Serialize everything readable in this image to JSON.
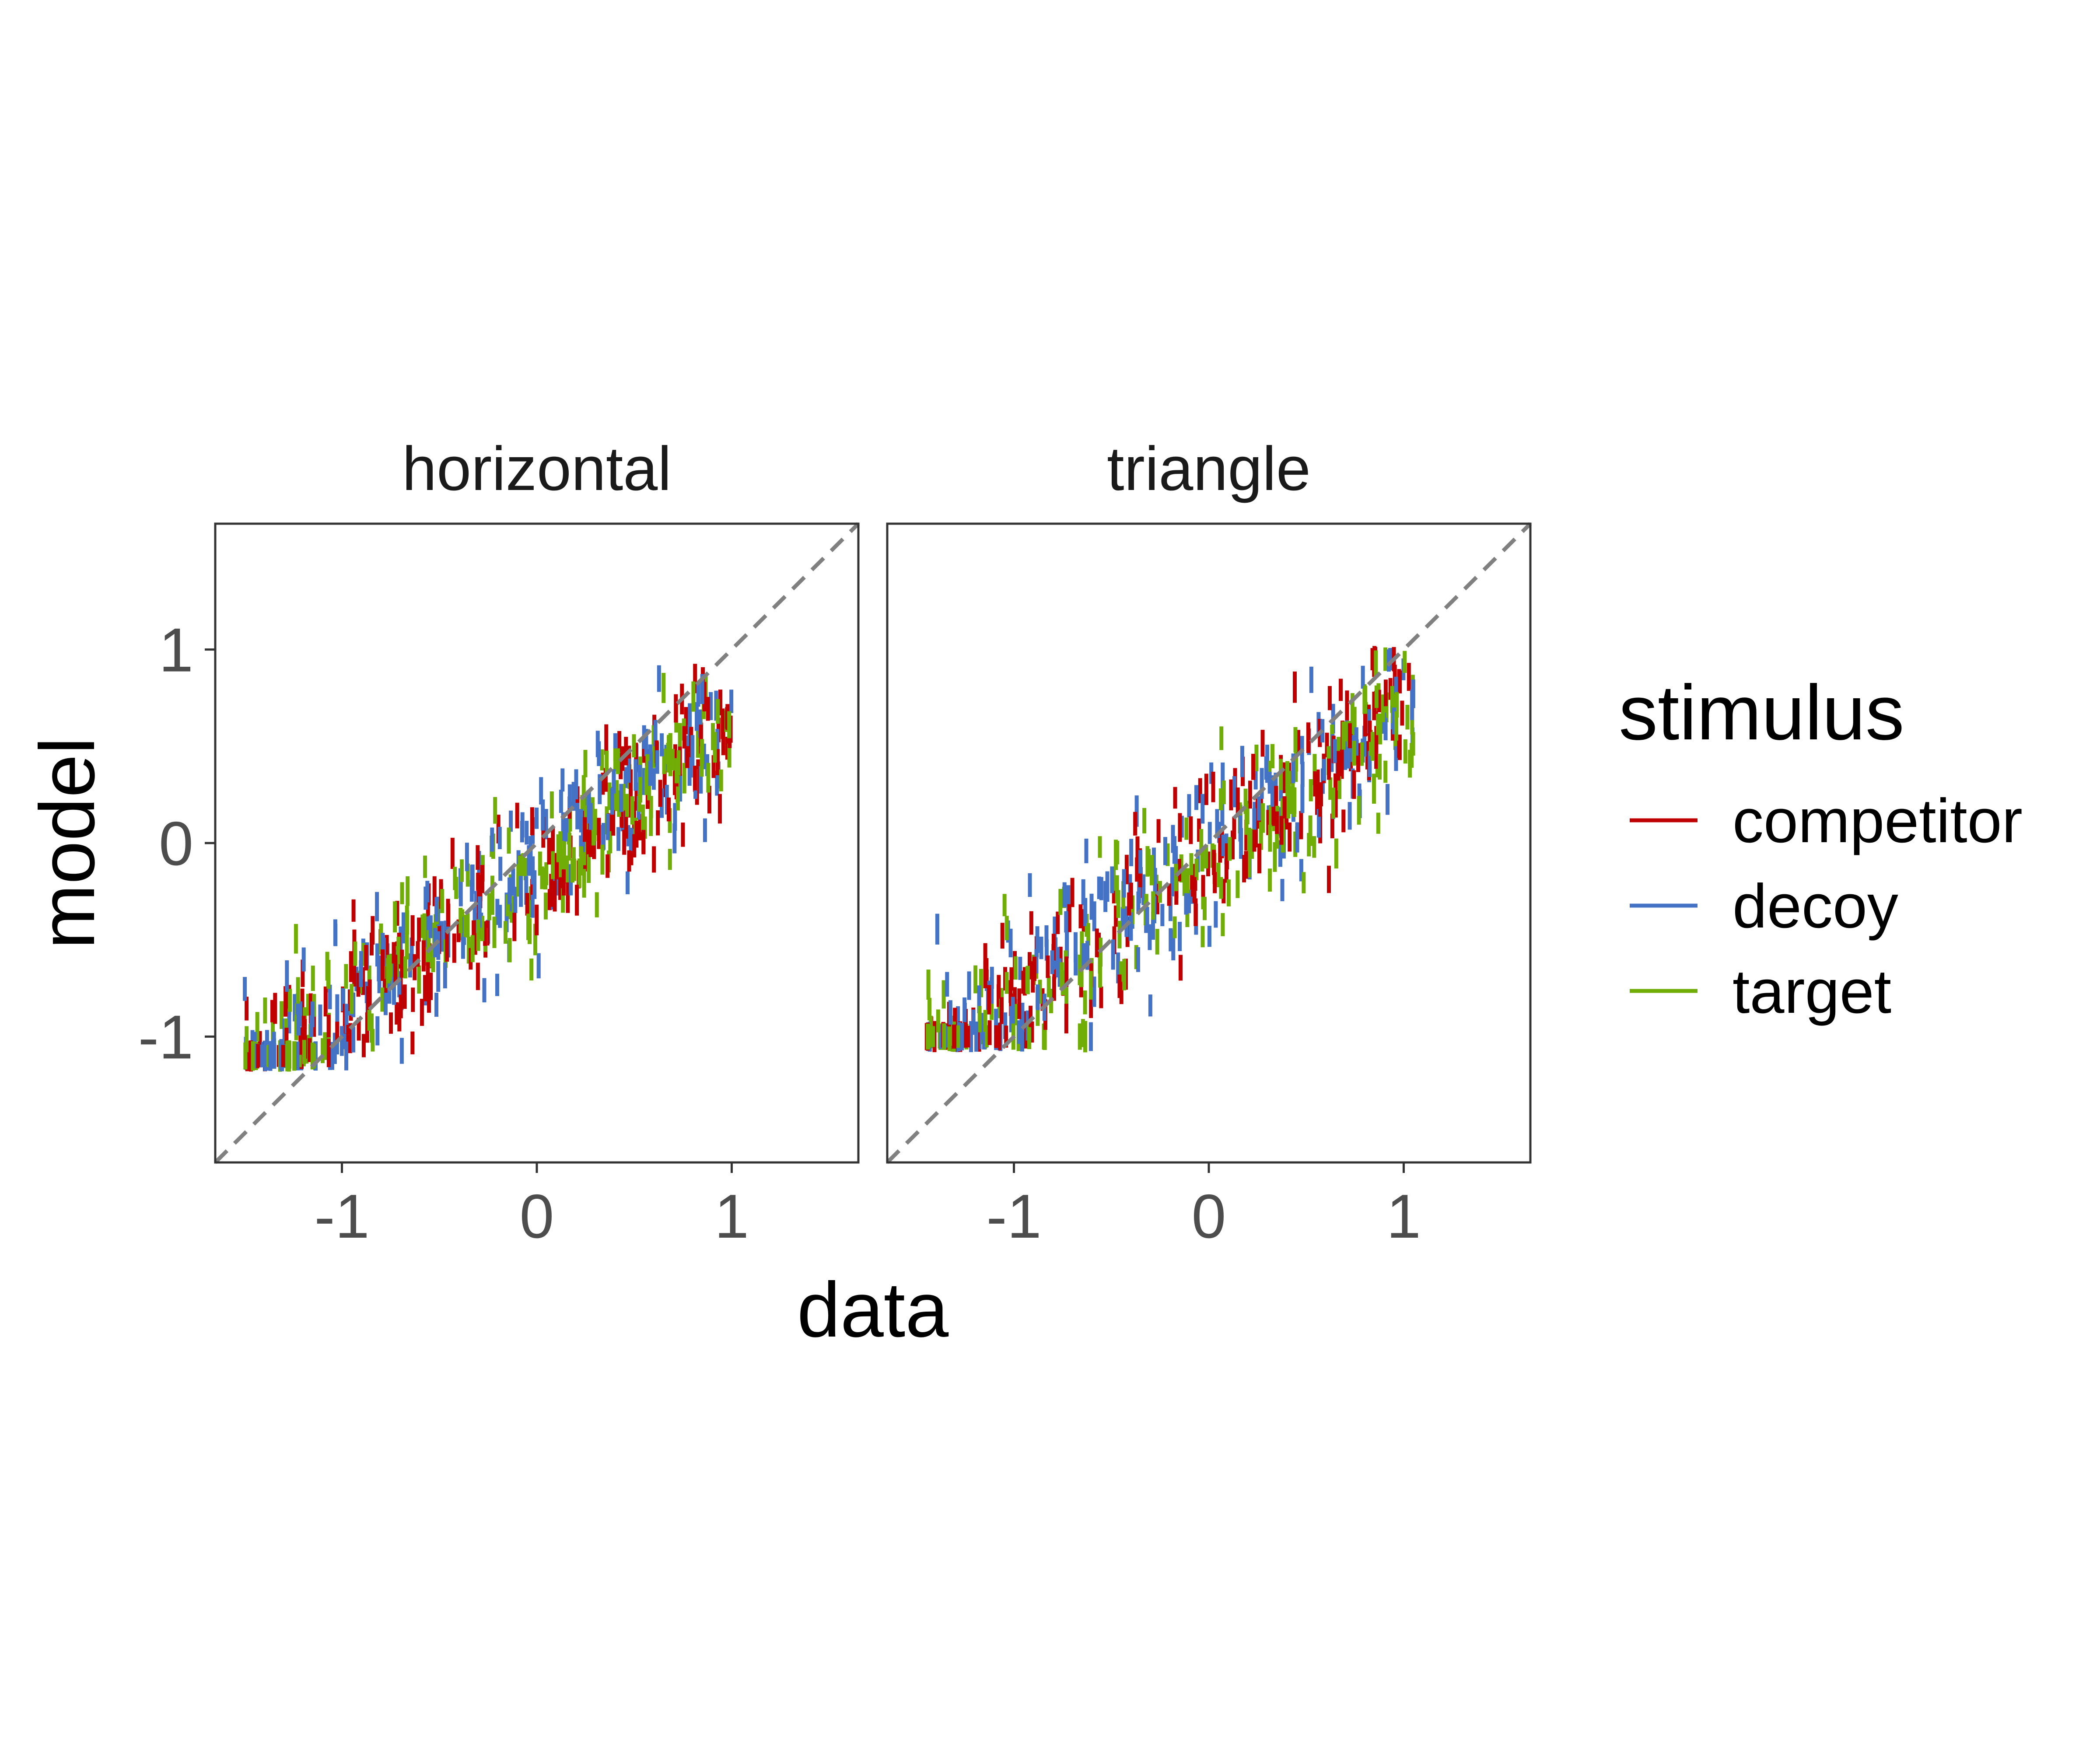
{
  "chart_data": {
    "type": "scatter",
    "xlabel": "data",
    "ylabel": "model",
    "xlim": [
      -1.65,
      1.65
    ],
    "ylim": [
      -1.65,
      1.65
    ],
    "x_ticks": [
      "-1",
      "0",
      "1"
    ],
    "y_ticks": [
      "-1",
      "0",
      "1"
    ],
    "reference_line": "y = x (dashed)",
    "marker": "short vertical segment",
    "legend": {
      "title": "stimulus",
      "placement": "right",
      "entries": [
        {
          "label": "competitor",
          "color": "#C00000"
        },
        {
          "label": "decoy",
          "color": "#4472C4"
        },
        {
          "label": "target",
          "color": "#70AD07"
        }
      ]
    },
    "panels": [
      {
        "name": "horizontal",
        "x_range": [
          -1.5,
          1.0
        ],
        "y_range": [
          -1.1,
          0.85
        ],
        "trend": {
          "slope": 0.75,
          "intercept": -0.12,
          "spread": 0.18
        },
        "points_per_series": 230
      },
      {
        "name": "triangle",
        "x_range": [
          -1.45,
          1.05
        ],
        "y_range": [
          -1.0,
          0.95
        ],
        "trend": {
          "slope": 0.75,
          "intercept": -0.05,
          "spread": 0.2
        },
        "points_per_series": 210
      }
    ]
  }
}
